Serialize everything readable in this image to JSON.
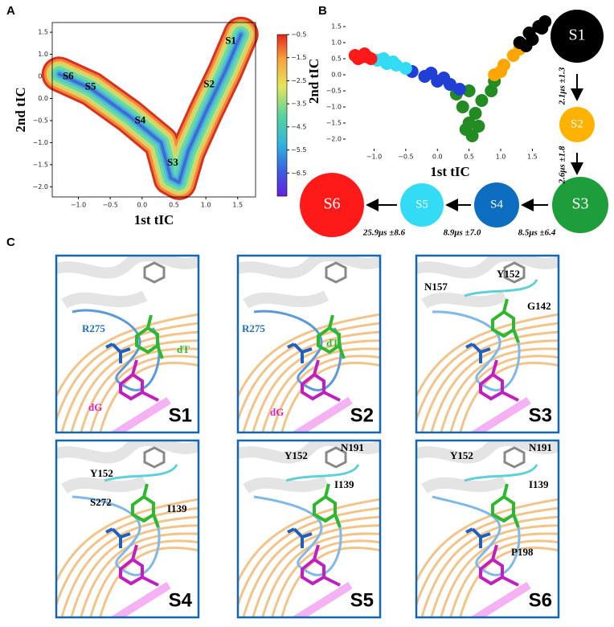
{
  "panel_labels": [
    "A",
    "B",
    "C"
  ],
  "chart_data": [
    {
      "type": "contour",
      "xlabel": "1st tIC",
      "ylabel": "2nd tIC",
      "xlim": [
        -1.41,
        1.78
      ],
      "ylim": [
        -2.23,
        1.72
      ],
      "xticks": [
        {
          "value": -1.0,
          "label": "−1.0"
        },
        {
          "value": -0.5,
          "label": "−0.5"
        },
        {
          "value": 0.0,
          "label": "0.0"
        },
        {
          "value": 0.5,
          "label": "0.5"
        },
        {
          "value": 1.0,
          "label": "1.0"
        },
        {
          "value": 1.5,
          "label": "1.5"
        }
      ],
      "yticks": [
        {
          "value": 1.5,
          "label": "1.5"
        },
        {
          "value": 1.0,
          "label": "1.0"
        },
        {
          "value": 0.5,
          "label": "0.5"
        },
        {
          "value": 0.0,
          "label": "0.0"
        },
        {
          "value": -0.5,
          "label": "−0.5"
        },
        {
          "value": -1.0,
          "label": "−1.0"
        },
        {
          "value": -1.5,
          "label": "−1.5"
        },
        {
          "value": -2.0,
          "label": "−2.0"
        }
      ],
      "colorbar": {
        "lim": [
          -7.5,
          -0.5
        ],
        "ticks": [
          {
            "value": -0.5,
            "label": "−0.5"
          },
          {
            "value": -1.5,
            "label": "−1.5"
          },
          {
            "value": -2.5,
            "label": "−2.5"
          },
          {
            "value": -3.5,
            "label": "−3.5"
          },
          {
            "value": -4.5,
            "label": "−4.5"
          },
          {
            "value": -5.5,
            "label": "−5.5"
          },
          {
            "value": -6.5,
            "label": "−6.5"
          }
        ]
      },
      "annotations": [
        {
          "text": "S1",
          "x": 1.39,
          "y": 1.29
        },
        {
          "text": "S2",
          "x": 1.05,
          "y": 0.31
        },
        {
          "text": "S4",
          "x": -0.03,
          "y": -0.51
        },
        {
          "text": "S3",
          "x": 0.48,
          "y": -1.47
        },
        {
          "text": "S5",
          "x": -0.81,
          "y": 0.25
        },
        {
          "text": "S6",
          "x": -1.16,
          "y": 0.49
        }
      ]
    },
    {
      "type": "scatter",
      "xlabel": "1st tIC",
      "ylabel": "2nd tIC",
      "xlim": [
        -1.45,
        1.85
      ],
      "ylim": [
        -2.3,
        1.9
      ],
      "xticks": [
        {
          "value": -1.0,
          "label": "−1.0"
        },
        {
          "value": -0.5,
          "label": "−0.5"
        },
        {
          "value": 0.0,
          "label": "0.0"
        },
        {
          "value": 0.5,
          "label": "0.5"
        },
        {
          "value": 1.0,
          "label": "1.0"
        },
        {
          "value": 1.5,
          "label": "1.5"
        }
      ],
      "yticks": [
        {
          "value": 1.5,
          "label": "1.5"
        },
        {
          "value": 1.0,
          "label": "1.0"
        },
        {
          "value": 0.5,
          "label": "0.5"
        },
        {
          "value": 0.0,
          "label": "0.0"
        },
        {
          "value": -0.5,
          "label": "−0.5"
        },
        {
          "value": -1.0,
          "label": "−1.0"
        },
        {
          "value": -1.5,
          "label": "−1.5"
        },
        {
          "value": -2.0,
          "label": "−2.0"
        }
      ],
      "series": [
        {
          "color": "#228b22",
          "x": [
            0.5,
            0.4,
            0.5,
            0.55,
            0.7,
            0.85,
            0.3,
            0.6,
            0.9,
            0.45,
            0.65
          ],
          "y": [
            -0.5,
            -1.0,
            -1.5,
            -1.9,
            -0.8,
            -0.5,
            -0.6,
            -1.2,
            -0.2,
            -1.7,
            -1.6
          ]
        },
        {
          "color": "#ffa500",
          "x": [
            0.9,
            1.05,
            1.2,
            1.3,
            1.0
          ],
          "y": [
            0.0,
            0.3,
            0.6,
            0.8,
            0.1
          ]
        },
        {
          "color": "#000000",
          "x": [
            1.3,
            1.45,
            1.6,
            1.7,
            1.5,
            1.65,
            1.4
          ],
          "y": [
            1.0,
            1.3,
            1.5,
            1.65,
            1.1,
            1.45,
            0.9
          ]
        },
        {
          "color": "#1f3fd6",
          "x": [
            -0.4,
            -0.2,
            0.0,
            0.2,
            0.35,
            -0.1,
            0.1
          ],
          "y": [
            0.1,
            -0.05,
            -0.2,
            -0.3,
            -0.45,
            0.05,
            -0.1
          ]
        },
        {
          "color": "#33dbf5",
          "x": [
            -0.95,
            -0.8,
            -0.65,
            -0.5,
            -0.85,
            -0.7
          ],
          "y": [
            0.45,
            0.35,
            0.3,
            0.2,
            0.5,
            0.4
          ]
        },
        {
          "color": "#ff1a1a",
          "x": [
            -1.3,
            -1.2,
            -1.1,
            -1.25,
            -1.15,
            -1.05
          ],
          "y": [
            0.6,
            0.55,
            0.55,
            0.5,
            0.65,
            0.5
          ]
        }
      ]
    }
  ],
  "kinetic_scheme": {
    "states": [
      {
        "label": "S1",
        "color": "#000000"
      },
      {
        "label": "S2",
        "color": "#ffb300"
      },
      {
        "label": "S3",
        "color": "#1e9e3a"
      },
      {
        "label": "S4",
        "color": "#0d6ebf"
      },
      {
        "label": "S5",
        "color": "#33dbf5"
      },
      {
        "label": "S6",
        "color": "#ff1a1a"
      }
    ],
    "transitions": [
      "2.1μs ±1.3",
      "2.6μs ±1.8",
      "8.5μs ±6.4",
      "8.9μs ±7.0",
      "25.9μs ±8.6"
    ]
  },
  "structures": [
    {
      "state": "S1",
      "labels": [
        {
          "text": "R275",
          "color": "#1f6fbf"
        },
        {
          "text": "dT",
          "color": "#2eb82e"
        },
        {
          "text": "dG",
          "color": "#e020c0"
        }
      ]
    },
    {
      "state": "S2",
      "labels": [
        {
          "text": "R275",
          "color": "#1f6fbf"
        },
        {
          "text": "dT",
          "color": "#2eb82e"
        },
        {
          "text": "dG",
          "color": "#e020c0"
        }
      ]
    },
    {
      "state": "S3",
      "labels": [
        {
          "text": "N157",
          "color": "#000000"
        },
        {
          "text": "Y152",
          "color": "#000000"
        },
        {
          "text": "G142",
          "color": "#000000"
        }
      ]
    },
    {
      "state": "S4",
      "labels": [
        {
          "text": "Y152",
          "color": "#000000"
        },
        {
          "text": "S272",
          "color": "#000000"
        },
        {
          "text": "I139",
          "color": "#000000"
        }
      ]
    },
    {
      "state": "S5",
      "labels": [
        {
          "text": "Y152",
          "color": "#000000"
        },
        {
          "text": "N191",
          "color": "#000000"
        },
        {
          "text": "I139",
          "color": "#000000"
        }
      ]
    },
    {
      "state": "S6",
      "labels": [
        {
          "text": "Y152",
          "color": "#000000"
        },
        {
          "text": "N191",
          "color": "#000000"
        },
        {
          "text": "I139",
          "color": "#000000"
        },
        {
          "text": "P198",
          "color": "#000000"
        }
      ]
    }
  ]
}
